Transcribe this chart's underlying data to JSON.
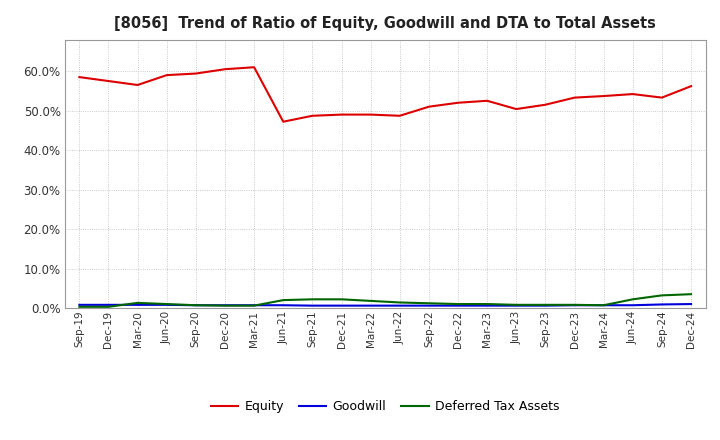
{
  "title": "[8056]  Trend of Ratio of Equity, Goodwill and DTA to Total Assets",
  "x_labels": [
    "Sep-19",
    "Dec-19",
    "Mar-20",
    "Jun-20",
    "Sep-20",
    "Dec-20",
    "Mar-21",
    "Jun-21",
    "Sep-21",
    "Dec-21",
    "Mar-22",
    "Jun-22",
    "Sep-22",
    "Dec-22",
    "Mar-23",
    "Jun-23",
    "Sep-23",
    "Dec-23",
    "Mar-24",
    "Jun-24",
    "Sep-24",
    "Dec-24"
  ],
  "equity": [
    0.585,
    0.575,
    0.565,
    0.59,
    0.594,
    0.605,
    0.61,
    0.472,
    0.487,
    0.49,
    0.49,
    0.487,
    0.51,
    0.52,
    0.525,
    0.504,
    0.515,
    0.533,
    0.537,
    0.542,
    0.533,
    0.562
  ],
  "goodwill": [
    0.008,
    0.008,
    0.008,
    0.008,
    0.007,
    0.007,
    0.007,
    0.007,
    0.006,
    0.006,
    0.006,
    0.006,
    0.006,
    0.006,
    0.006,
    0.006,
    0.006,
    0.007,
    0.007,
    0.007,
    0.009,
    0.01
  ],
  "dta": [
    0.003,
    0.003,
    0.013,
    0.01,
    0.007,
    0.006,
    0.006,
    0.02,
    0.022,
    0.022,
    0.018,
    0.014,
    0.012,
    0.01,
    0.01,
    0.008,
    0.008,
    0.008,
    0.007,
    0.022,
    0.032,
    0.035
  ],
  "equity_color": "#dd0000",
  "goodwill_color": "#0000dd",
  "dta_color": "#006600",
  "bg_color": "#ffffff",
  "grid_color": "#bbbbbb",
  "ylim": [
    0.0,
    0.68
  ],
  "yticks": [
    0.0,
    0.1,
    0.2,
    0.3,
    0.4,
    0.5,
    0.6
  ]
}
